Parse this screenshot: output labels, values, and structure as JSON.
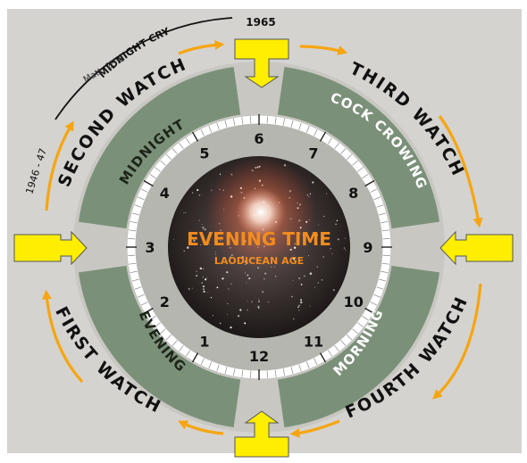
{
  "center": {
    "title": "EVENING TIME",
    "subtitle": "LAODICEAN AGE"
  },
  "hours": [
    "1",
    "2",
    "3",
    "4",
    "5",
    "6",
    "7",
    "8",
    "9",
    "10",
    "11",
    "12"
  ],
  "watches": {
    "first": "FIRST WATCH",
    "second": "SECOND WATCH",
    "third": "THIRD WATCH",
    "fourth": "FOURTH WATCH"
  },
  "sections": {
    "midnight": "MIDNIGHT",
    "cock_crowing": "COCK CROWING",
    "morning": "MORNING",
    "evening": "EVENING"
  },
  "annotations": {
    "midnight_cry": "MIDNIGHT CRY",
    "reference": "Matt. 25:6",
    "year_1965": "1965",
    "years_1946_47": "1946 - 47"
  },
  "colors": {
    "background": "#d4d3cf",
    "outer_disc": "#c8c7c2",
    "sector": "#7b9079",
    "inner_disc": "#b5b6b0",
    "tick_ring": "#ffffff",
    "arrow_yellow": "#ffee00",
    "arrow_orange": "#f6a512",
    "center_text": "#f28c1d"
  }
}
